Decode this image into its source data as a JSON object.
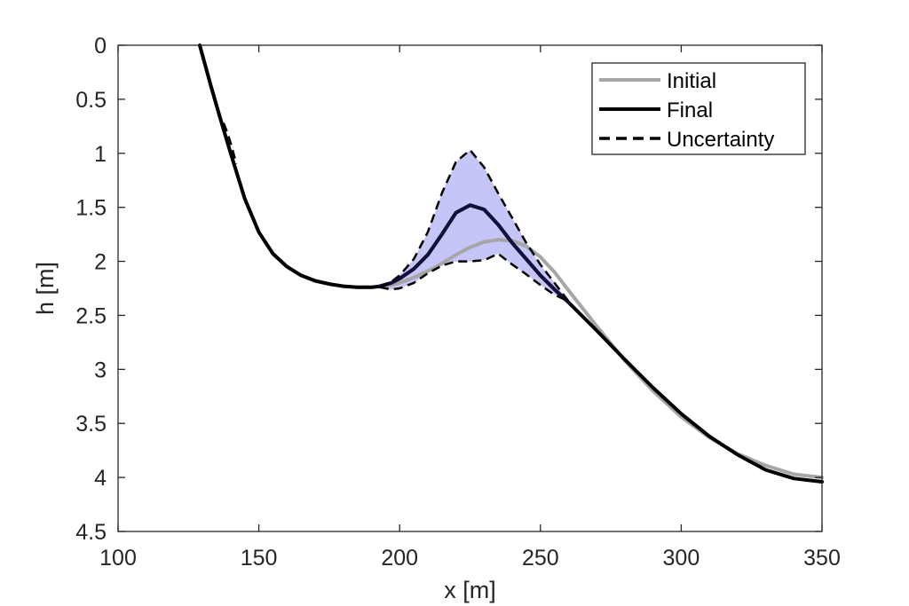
{
  "chart_data": {
    "type": "line",
    "xlabel": "x [m]",
    "ylabel": "h [m]",
    "xlim": [
      100,
      350
    ],
    "ylim": [
      0,
      4.5
    ],
    "y_reversed": true,
    "grid": false,
    "legend_position": "top-right",
    "x_ticks": [
      100,
      150,
      200,
      250,
      300,
      350
    ],
    "y_ticks": [
      0,
      0.5,
      1,
      1.5,
      2,
      2.5,
      3,
      3.5,
      4,
      4.5
    ],
    "x_tick_labels": [
      "100",
      "150",
      "200",
      "250",
      "300",
      "350"
    ],
    "y_tick_labels": [
      "0",
      "0.5",
      "1",
      "1.5",
      "2",
      "2.5",
      "3",
      "3.5",
      "4",
      "4.5"
    ],
    "colors": {
      "initial": "#a6a6a6",
      "final": "#000000",
      "uncertainty": "#000000",
      "uncertainty_fill": "#c5c5f7",
      "final_in_band": "#10103a"
    },
    "series": [
      {
        "name": "Initial",
        "style": "solid-gray",
        "x": [
          129,
          133,
          136,
          140,
          145,
          150,
          155,
          160,
          165,
          170,
          175,
          180,
          185,
          190,
          195,
          200,
          205,
          210,
          215,
          220,
          225,
          230,
          235,
          240,
          245,
          250,
          255,
          260,
          270,
          280,
          290,
          300,
          310,
          320,
          330,
          340,
          350
        ],
        "y": [
          0,
          0.38,
          0.65,
          1.0,
          1.42,
          1.73,
          1.93,
          2.05,
          2.13,
          2.18,
          2.21,
          2.23,
          2.24,
          2.24,
          2.23,
          2.2,
          2.15,
          2.09,
          2.02,
          1.94,
          1.87,
          1.82,
          1.8,
          1.81,
          1.86,
          1.96,
          2.1,
          2.27,
          2.6,
          2.92,
          3.2,
          3.44,
          3.63,
          3.78,
          3.89,
          3.97,
          4.0
        ]
      },
      {
        "name": "Final",
        "style": "solid-black",
        "x": [
          129,
          133,
          136,
          140,
          145,
          150,
          155,
          160,
          165,
          170,
          175,
          180,
          185,
          190,
          193,
          197,
          200,
          205,
          210,
          215,
          220,
          225,
          230,
          235,
          240,
          245,
          250,
          255,
          260,
          270,
          280,
          290,
          300,
          310,
          320,
          330,
          340,
          350
        ],
        "y": [
          0,
          0.38,
          0.65,
          1.0,
          1.42,
          1.73,
          1.93,
          2.05,
          2.13,
          2.18,
          2.21,
          2.23,
          2.24,
          2.24,
          2.23,
          2.2,
          2.16,
          2.07,
          1.94,
          1.75,
          1.55,
          1.48,
          1.52,
          1.66,
          1.83,
          1.98,
          2.13,
          2.26,
          2.38,
          2.64,
          2.91,
          3.17,
          3.41,
          3.62,
          3.79,
          3.93,
          4.01,
          4.04
        ]
      },
      {
        "name": "Uncertainty",
        "style": "dashed-black",
        "bounds": [
          {
            "x": [
              193,
              197,
              200,
              205,
              210,
              215,
              220,
              225,
              230,
              235,
              240,
              245,
              250,
              255,
              260
            ],
            "y": [
              2.24,
              2.19,
              2.13,
              1.98,
              1.73,
              1.37,
              1.08,
              0.97,
              1.13,
              1.37,
              1.6,
              1.83,
              2.03,
              2.2,
              2.37
            ]
          },
          {
            "x": [
              193,
              197,
              200,
              205,
              210,
              215,
              220,
              225,
              230,
              235,
              240,
              245,
              250,
              255,
              260
            ],
            "y": [
              2.24,
              2.26,
              2.25,
              2.2,
              2.11,
              2.04,
              2.0,
              2.0,
              1.99,
              1.93,
              2.03,
              2.12,
              2.22,
              2.31,
              2.37
            ]
          },
          {
            "x": [
              137.5,
              139,
              140.5,
              142
            ],
            "y": [
              0.72,
              0.82,
              0.95,
              1.1
            ]
          }
        ]
      }
    ]
  }
}
